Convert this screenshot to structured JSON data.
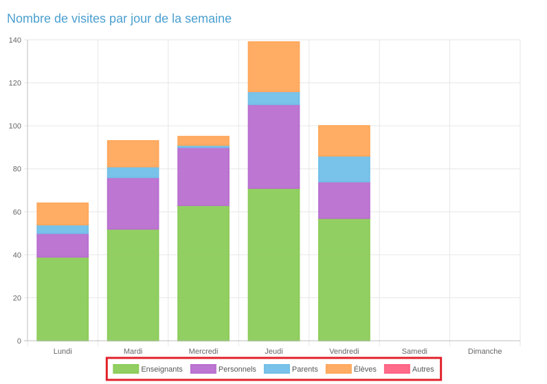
{
  "header": {
    "title": "Nombre de visites par jour de la semaine"
  },
  "chart_data": {
    "type": "bar",
    "stacked": true,
    "categories": [
      "Lundi",
      "Mardi",
      "Mercredi",
      "Jeudi",
      "Vendredi",
      "Samedi",
      "Dimanche"
    ],
    "series": [
      {
        "name": "Enseignants",
        "color": "#8ccc5a",
        "values": [
          39,
          52,
          63,
          71,
          57,
          0,
          0
        ]
      },
      {
        "name": "Personnels",
        "color": "#b96fd0",
        "values": [
          11,
          24,
          27,
          39,
          17,
          0,
          0
        ]
      },
      {
        "name": "Parents",
        "color": "#72bfe8",
        "values": [
          4,
          5,
          1,
          6,
          12,
          0,
          0
        ]
      },
      {
        "name": "Élèves",
        "color": "#ffa85c",
        "values": [
          10,
          12,
          4,
          23,
          14,
          0,
          0
        ]
      },
      {
        "name": "Autres",
        "color": "#ff6384",
        "values": [
          0,
          0,
          0,
          0,
          0,
          0,
          0
        ]
      }
    ],
    "yticks": [
      0,
      20,
      40,
      60,
      80,
      100,
      120,
      140
    ],
    "ylim": [
      0,
      140
    ],
    "xlabel": "",
    "ylabel": "",
    "grid": true,
    "legend_position": "bottom",
    "legend_border_color": "#e0202a"
  }
}
